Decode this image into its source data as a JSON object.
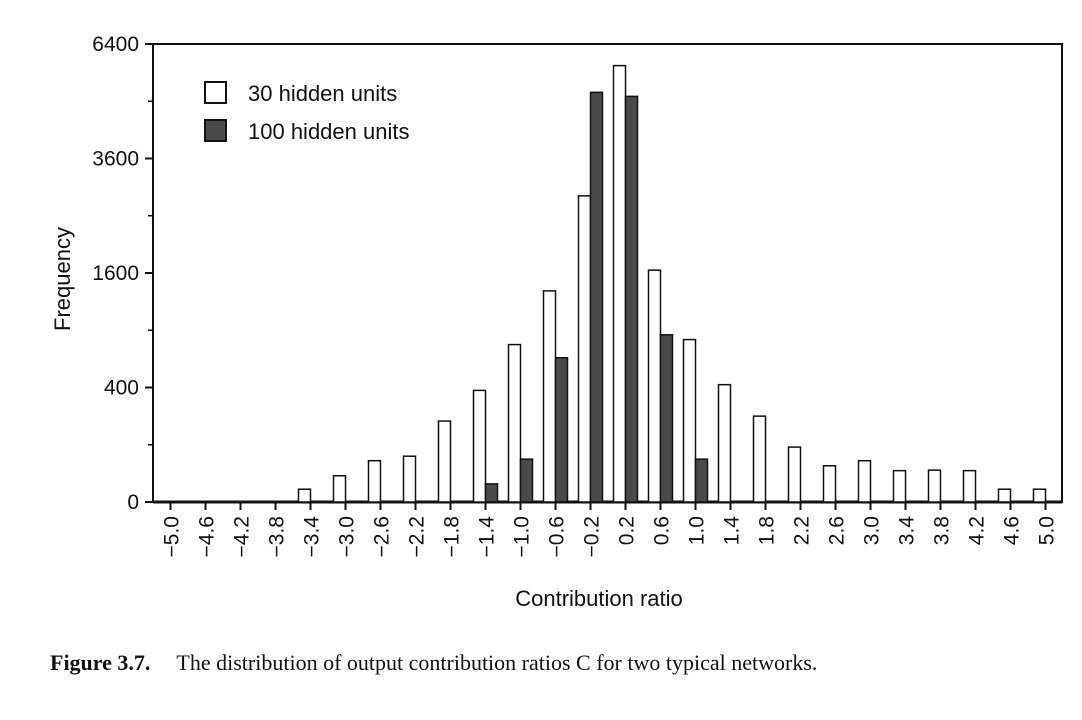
{
  "chart_data": {
    "type": "bar",
    "xlabel": "Contribution ratio",
    "ylabel": "Frequency",
    "y_ticks": [
      "0",
      "400",
      "1600",
      "3600",
      "6400"
    ],
    "y_tick_values": [
      0,
      400,
      1600,
      3600,
      6400
    ],
    "y_scale": "square-root",
    "ylim": [
      0,
      6400
    ],
    "categories": [
      "-5.0",
      "-4.6",
      "-4.2",
      "-3.8",
      "-3.4",
      "-3.0",
      "-2.6",
      "-2.2",
      "-1.8",
      "-1.4",
      "-1.0",
      "-0.6",
      "-0.2",
      "0.2",
      "0.6",
      "1.0",
      "1.4",
      "1.8",
      "2.2",
      "2.6",
      "3.0",
      "3.4",
      "3.8",
      "4.2",
      "4.6",
      "5.0"
    ],
    "x_tick_labels": [
      "−5.0",
      "−4.6",
      "−4.2",
      "−3.8",
      "−3.4",
      "−3.0",
      "−2.6",
      "−2.2",
      "−1.8",
      "−1.4",
      "−1.0",
      "−0.6",
      "−0.2",
      "0.2",
      "0.6",
      "1.0",
      "1.4",
      "1.8",
      "2.2",
      "2.6",
      "3.0",
      "3.4",
      "3.8",
      "4.2",
      "4.6",
      "5.0"
    ],
    "series": [
      {
        "name": "30 hidden units",
        "color": "#ffffff",
        "values": [
          0,
          0,
          0,
          0,
          5,
          21,
          52,
          64,
          200,
          380,
          756,
          1360,
          2860,
          5810,
          1640,
          805,
          420,
          225,
          92,
          40,
          52,
          30,
          31,
          30,
          5,
          5
        ]
      },
      {
        "name": "100 hidden units",
        "color": "#4a4a4a",
        "values": [
          0,
          0,
          0,
          0,
          0,
          0,
          0,
          0,
          0,
          10,
          56,
          635,
          5120,
          5020,
          853,
          56,
          0,
          0,
          0,
          0,
          0,
          0,
          0,
          0,
          0,
          0
        ]
      }
    ],
    "legend_position": "top-left",
    "grid": false
  },
  "caption": {
    "figure_number": "Figure 3.7.",
    "text": "The distribution of output contribution ratios C for two typical networks."
  }
}
